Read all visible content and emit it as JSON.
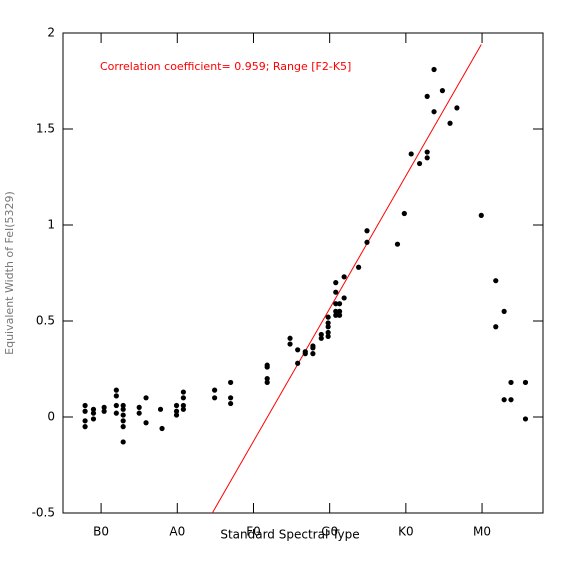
{
  "chart_data": {
    "type": "scatter",
    "annotation": "Correlation coefficient= 0.959; Range [F2-K5]",
    "x_label": "Standard Spectral Type",
    "y_label": "Equivalent Width of FeI(5329)",
    "xlim": [
      5,
      68
    ],
    "ylim": [
      -0.5,
      2
    ],
    "xticks": [
      {
        "value": 10,
        "label": "B0"
      },
      {
        "value": 20,
        "label": "A0"
      },
      {
        "value": 30,
        "label": "F0"
      },
      {
        "value": 40,
        "label": "G0"
      },
      {
        "value": 50,
        "label": "K0"
      },
      {
        "value": 60,
        "label": "M0"
      }
    ],
    "yticks": [
      -0.5,
      0,
      0.5,
      1,
      1.5,
      2
    ],
    "series": [
      {
        "color": "#000000",
        "x": [
          7.9,
          7.9,
          7.9,
          7.9,
          9.0,
          9.0,
          9.0,
          10.4,
          10.4,
          12.0,
          12.0,
          12.0,
          12.0,
          12.9,
          12.9,
          12.9,
          12.9,
          12.9,
          12.9,
          15.0,
          15.0,
          15.9,
          15.9,
          17.8,
          18.0,
          19.9,
          19.9,
          19.9,
          20.8,
          20.8,
          20.8,
          20.8,
          24.9,
          24.9,
          27.0,
          27.0,
          27.0,
          31.8,
          31.8,
          31.8,
          31.8,
          34.8,
          34.8,
          35.8,
          35.8,
          36.8,
          36.8,
          37.8,
          37.8,
          37.8,
          38.9,
          38.9,
          39.8,
          39.8,
          39.8,
          39.8,
          39.8,
          40.8,
          40.8,
          40.8,
          40.8,
          40.8,
          41.3,
          41.3,
          41.9,
          41.9,
          41.3,
          43.8,
          44.9,
          44.9,
          48.9,
          49.8,
          50.7,
          51.8,
          52.8,
          52.8,
          52.8,
          53.7,
          53.7,
          54.8,
          55.8,
          56.7,
          59.9,
          61.8,
          61.8,
          62.9,
          62.9,
          63.8,
          63.8,
          65.7,
          65.7
        ],
        "y": [
          0.06,
          0.03,
          -0.02,
          -0.05,
          0.04,
          0.02,
          -0.01,
          0.05,
          0.03,
          0.14,
          0.11,
          0.06,
          0.02,
          0.06,
          0.04,
          0.01,
          -0.02,
          -0.05,
          -0.13,
          0.05,
          0.02,
          0.1,
          -0.03,
          0.04,
          -0.06,
          0.06,
          0.03,
          0.01,
          0.13,
          0.1,
          0.06,
          0.04,
          0.14,
          0.1,
          0.18,
          0.1,
          0.07,
          0.27,
          0.26,
          0.2,
          0.18,
          0.41,
          0.38,
          0.28,
          0.35,
          0.34,
          0.33,
          0.37,
          0.36,
          0.33,
          0.43,
          0.41,
          0.52,
          0.49,
          0.47,
          0.44,
          0.42,
          0.53,
          0.59,
          0.55,
          0.65,
          0.7,
          0.55,
          0.53,
          0.73,
          0.62,
          0.59,
          0.78,
          0.91,
          0.97,
          0.9,
          1.06,
          1.37,
          1.32,
          1.67,
          1.38,
          1.35,
          1.81,
          1.59,
          1.7,
          1.53,
          1.61,
          1.05,
          0.71,
          0.47,
          0.55,
          0.09,
          0.18,
          0.09,
          0.18,
          -0.01
        ]
      }
    ],
    "fit_line": {
      "color": "#ff0000",
      "x": [
        24.6,
        59.9
      ],
      "y": [
        -0.5,
        1.94
      ]
    }
  }
}
